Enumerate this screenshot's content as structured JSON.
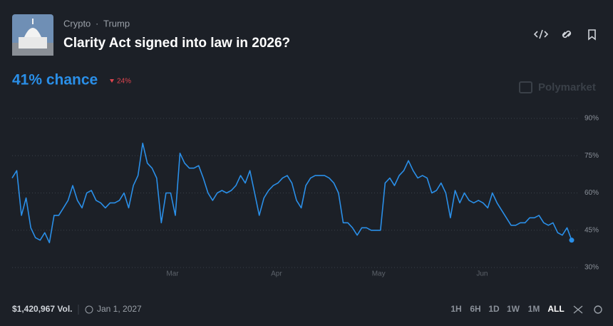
{
  "header": {
    "breadcrumb": [
      "Crypto",
      "Trump"
    ],
    "title": "Clarity Act signed into law in 2026?",
    "chance": "41% chance",
    "change": "24%",
    "watermark": "Polymarket"
  },
  "chart_data": {
    "type": "line",
    "color": "#2a8fe8",
    "grid": true,
    "ylim": [
      30,
      90
    ],
    "yticks": [
      {
        "value": 30,
        "label": "30%"
      },
      {
        "value": 45,
        "label": "45%"
      },
      {
        "value": 60,
        "label": "60%"
      },
      {
        "value": 75,
        "label": "75%"
      },
      {
        "value": 90,
        "label": "90%"
      }
    ],
    "xlim": [
      0,
      120
    ],
    "xticks": [
      {
        "value": 34.4,
        "label": "Mar"
      },
      {
        "value": 56.7,
        "label": "Apr"
      },
      {
        "value": 78.6,
        "label": "May"
      },
      {
        "value": 100.8,
        "label": "Jun"
      }
    ],
    "values": [
      66,
      69,
      51,
      58,
      46,
      42,
      41,
      44,
      40,
      51,
      51,
      54,
      57,
      63,
      57,
      54,
      60,
      61,
      57,
      56,
      54,
      56,
      56,
      57,
      60,
      54,
      63,
      67,
      80,
      72,
      70,
      66,
      48,
      60,
      60,
      51,
      76,
      72,
      70,
      70,
      71,
      66,
      60,
      57,
      60,
      61,
      60,
      61,
      63,
      67,
      64,
      69,
      60,
      51,
      58,
      61,
      63,
      64,
      66,
      67,
      64,
      57,
      54,
      63,
      66,
      67,
      67,
      67,
      66,
      64,
      60,
      48,
      48,
      46,
      43,
      46,
      46,
      45,
      45,
      45,
      64,
      66,
      63,
      67,
      69,
      73,
      69,
      66,
      67,
      66,
      60,
      61,
      64,
      60,
      50,
      61,
      56,
      60,
      57,
      56,
      57,
      56,
      54,
      60,
      56,
      53,
      50,
      47,
      47,
      48,
      48,
      50,
      50,
      51,
      48,
      47,
      48,
      44,
      43,
      46,
      41
    ]
  },
  "footer": {
    "volume": "$1,420,967 Vol.",
    "end_date": "Jan 1, 2027",
    "ranges": [
      "1H",
      "6H",
      "1D",
      "1W",
      "1M",
      "ALL"
    ]
  }
}
